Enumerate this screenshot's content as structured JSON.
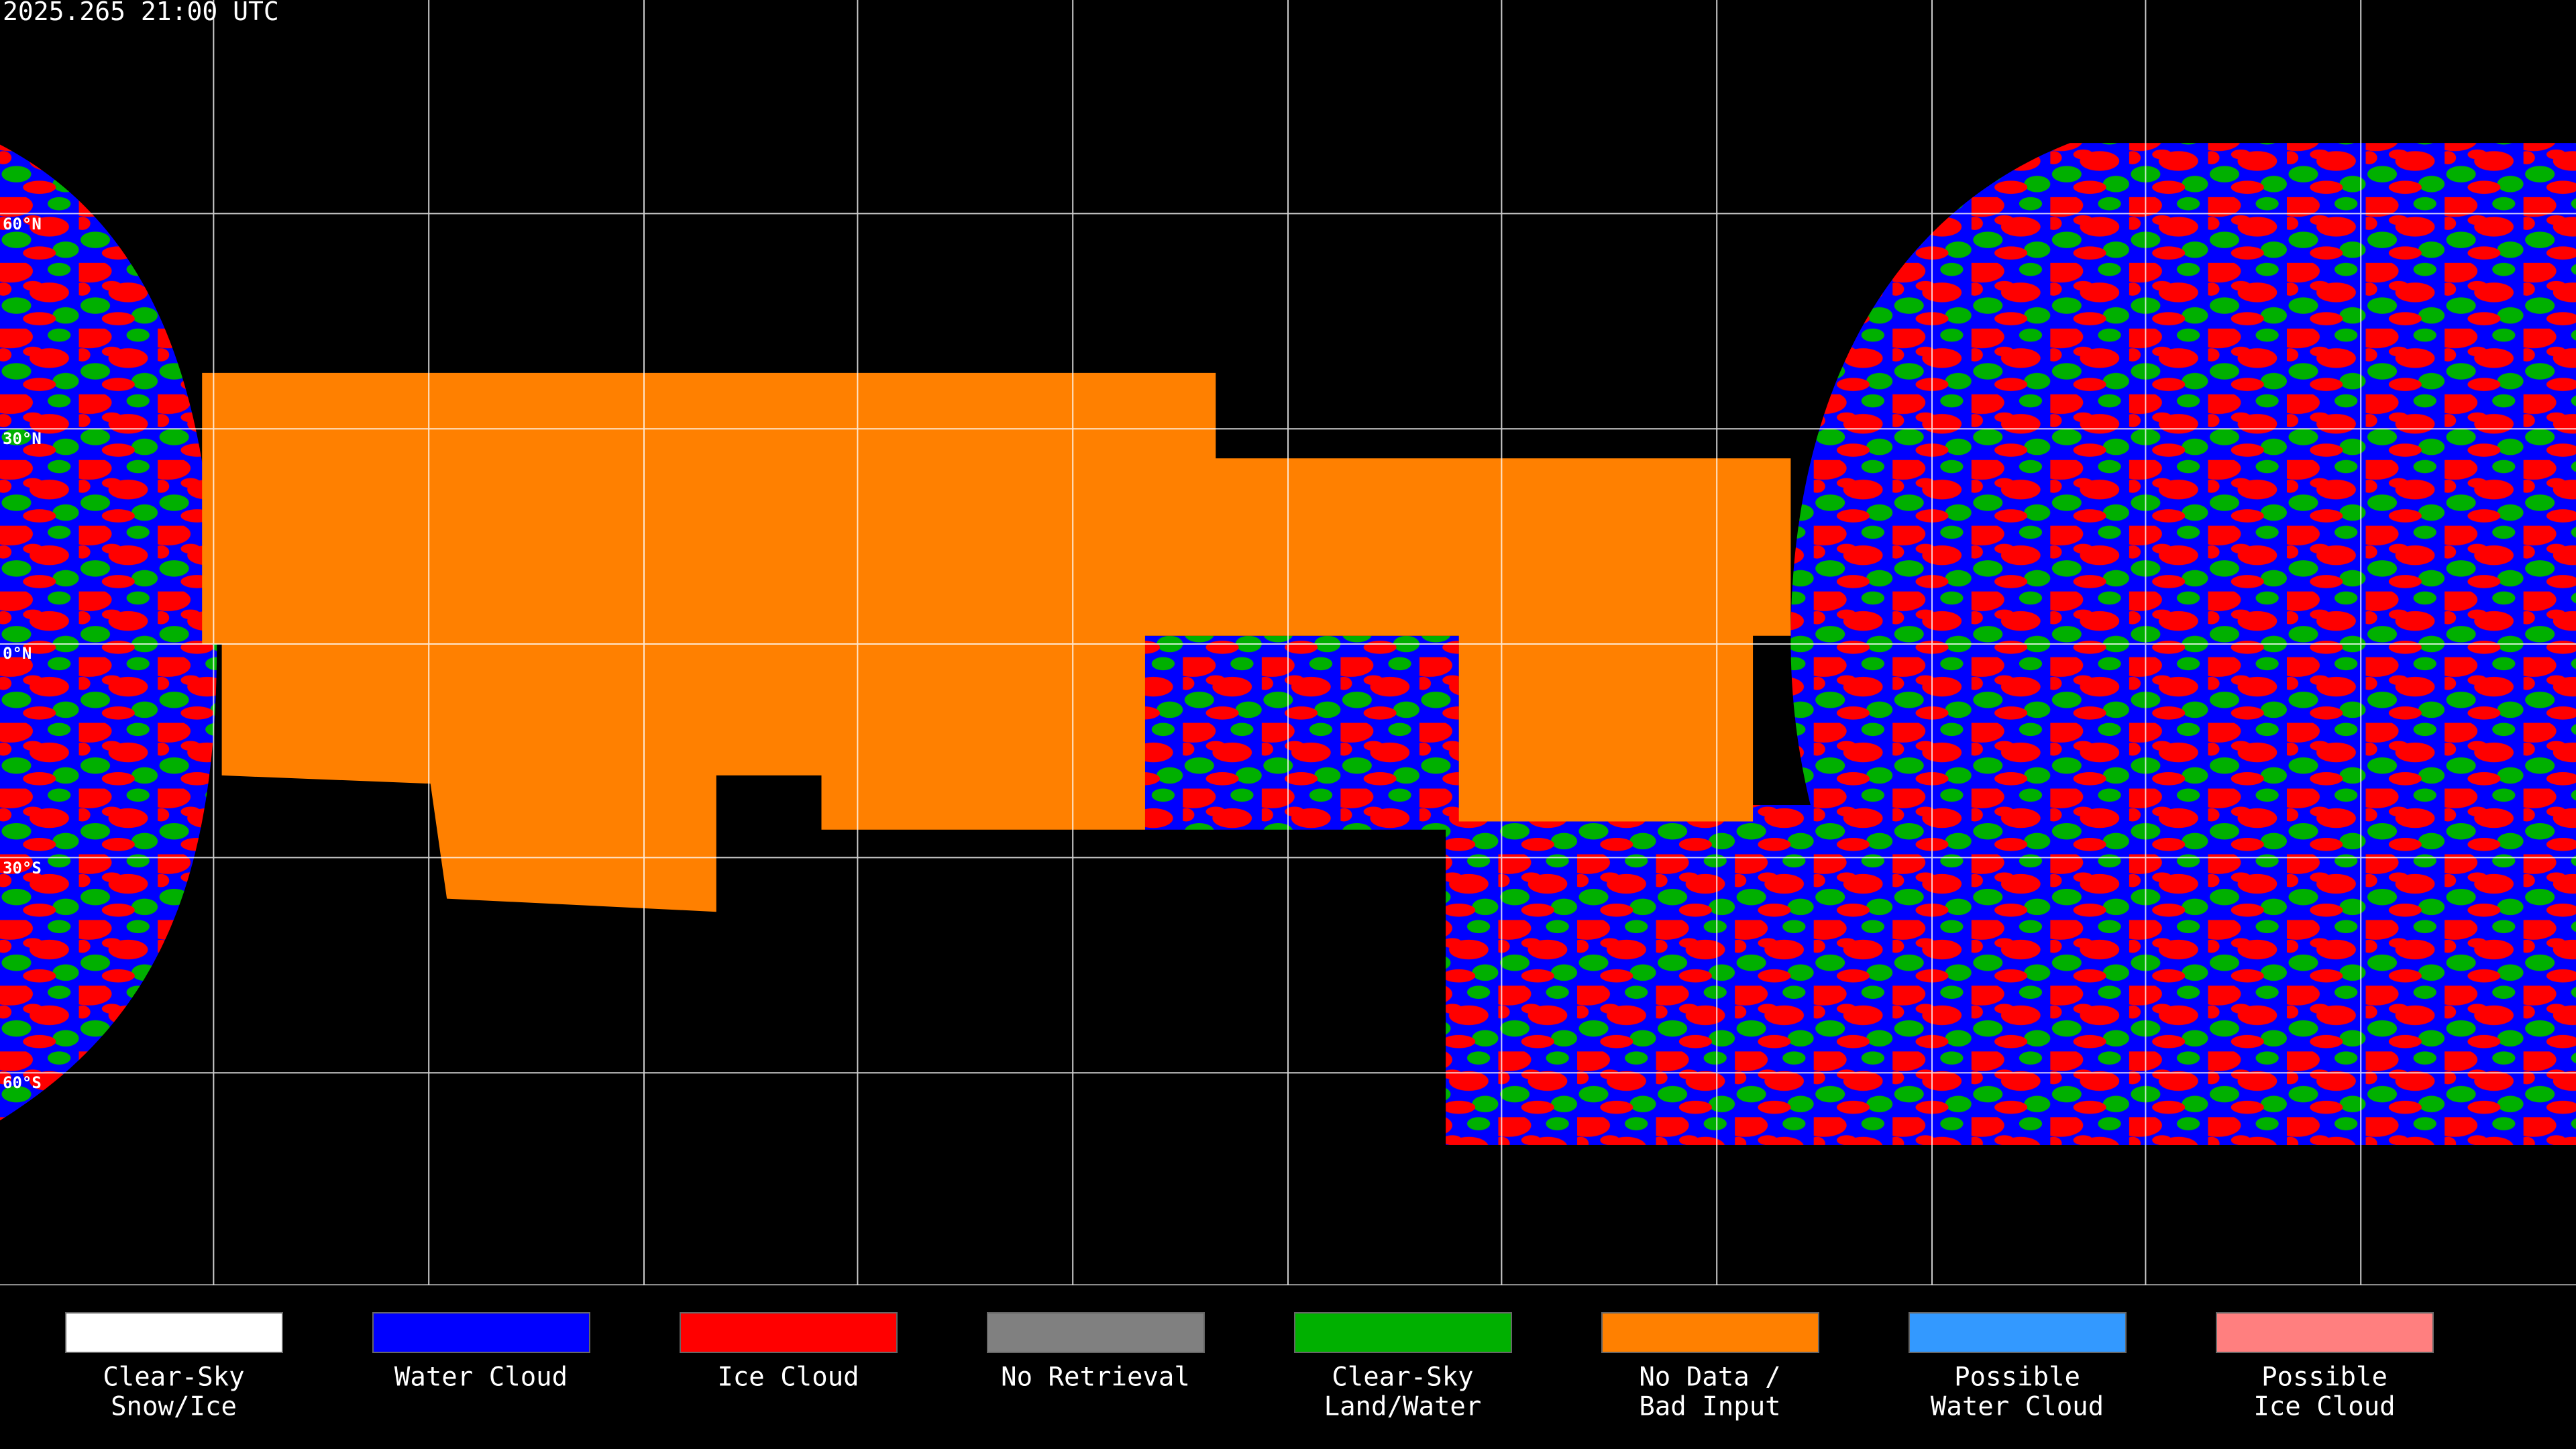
{
  "header": {
    "timestamp": "2025.265 21:00 UTC"
  },
  "latitude_labels": [
    "60°N",
    "30°N",
    "0°N",
    "30°S",
    "60°S"
  ],
  "legend": [
    {
      "lines": [
        "Clear-Sky",
        "Snow/Ice"
      ],
      "color": "#ffffff"
    },
    {
      "lines": [
        "Water Cloud"
      ],
      "color": "#0000ff"
    },
    {
      "lines": [
        "Ice Cloud"
      ],
      "color": "#ff0000"
    },
    {
      "lines": [
        "No Retrieval"
      ],
      "color": "#808080"
    },
    {
      "lines": [
        "Clear-Sky",
        "Land/Water"
      ],
      "color": "#00b000"
    },
    {
      "lines": [
        "No Data /",
        "Bad Input"
      ],
      "color": "#ff8000"
    },
    {
      "lines": [
        "Possible",
        "Water Cloud"
      ],
      "color": "#3399ff"
    },
    {
      "lines": [
        "Possible",
        "Ice Cloud"
      ],
      "color": "#ff7f7f"
    }
  ]
}
